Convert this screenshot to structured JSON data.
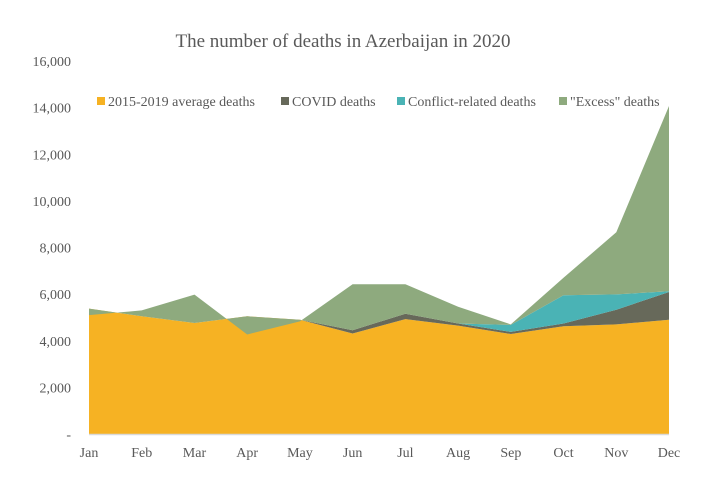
{
  "chart_data": {
    "type": "area",
    "stacked": true,
    "title": "The number of deaths in Azerbaijan in 2020",
    "xlabel": "",
    "ylabel": "",
    "categories": [
      "Jan",
      "Feb",
      "Mar",
      "Apr",
      "May",
      "Jun",
      "Jul",
      "Aug",
      "Sep",
      "Oct",
      "Nov",
      "Dec"
    ],
    "ylim": [
      0,
      16000
    ],
    "yticks": [
      0,
      2000,
      4000,
      6000,
      8000,
      10000,
      12000,
      14000,
      16000
    ],
    "ytick_labels": [
      "-",
      "2,000",
      "4,000",
      "6,000",
      "8,000",
      "10,000",
      "12,000",
      "14,000",
      "16,000"
    ],
    "grid": false,
    "legend_position": "top",
    "series": [
      {
        "name": "2015-2019 average deaths",
        "color": "#F6B223",
        "values": [
          5380,
          5050,
          4760,
          5050,
          4900,
          4310,
          4930,
          4650,
          4290,
          4620,
          4700,
          4900
        ]
      },
      {
        "name": "COVID deaths",
        "color": "#67695A",
        "values": [
          0,
          0,
          0,
          0,
          0,
          140,
          230,
          90,
          90,
          120,
          630,
          1190
        ]
      },
      {
        "name": "Conflict-related deaths",
        "color": "#4AB3B5",
        "values": [
          0,
          0,
          0,
          0,
          0,
          0,
          0,
          0,
          300,
          1210,
          660,
          30
        ]
      },
      {
        "name": "\"Excess\" deaths",
        "color": "#8EAA7E",
        "values": [
          -280,
          250,
          1220,
          -780,
          -70,
          1970,
          1260,
          720,
          20,
          750,
          2660,
          7950
        ]
      }
    ]
  }
}
